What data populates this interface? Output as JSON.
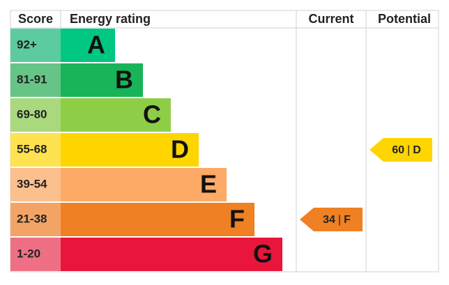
{
  "header": {
    "score": "Score",
    "rating": "Energy rating",
    "current": "Current",
    "potential": "Potential"
  },
  "bands": [
    {
      "score": "92+",
      "letter": "A",
      "color": "#00c781",
      "score_color": "#5ccba0"
    },
    {
      "score": "81-91",
      "letter": "B",
      "color": "#19b459",
      "score_color": "#66c487"
    },
    {
      "score": "69-80",
      "letter": "C",
      "color": "#8dce46",
      "score_color": "#a9d87d"
    },
    {
      "score": "55-68",
      "letter": "D",
      "color": "#ffd500",
      "score_color": "#ffe250"
    },
    {
      "score": "39-54",
      "letter": "E",
      "color": "#fcaa65",
      "score_color": "#fcc08f"
    },
    {
      "score": "21-38",
      "letter": "F",
      "color": "#ef8023",
      "score_color": "#f3a465"
    },
    {
      "score": "1-20",
      "letter": "G",
      "color": "#e9153b",
      "score_color": "#ef7085"
    }
  ],
  "divider": "|",
  "current": {
    "value": 34,
    "band": "F"
  },
  "potential": {
    "value": 60,
    "band": "D"
  }
}
